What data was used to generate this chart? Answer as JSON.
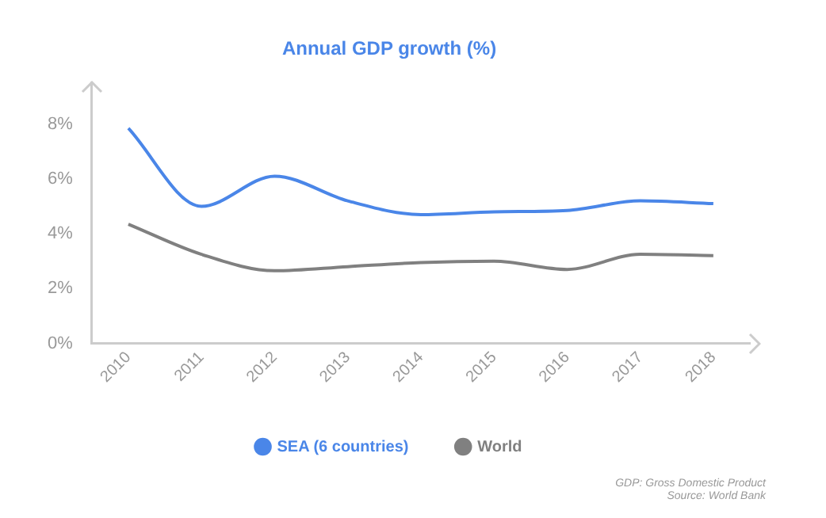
{
  "chart_data": {
    "type": "line",
    "title": "Annual GDP growth (%)",
    "categories": [
      "2010",
      "2011",
      "2012",
      "2013",
      "2014",
      "2015",
      "2016",
      "2017",
      "2018"
    ],
    "series": [
      {
        "name": "SEA (6 countries)",
        "color": "#4a86e8",
        "values": [
          7.85,
          5.0,
          6.1,
          5.2,
          4.7,
          4.8,
          4.85,
          5.2,
          5.1
        ]
      },
      {
        "name": "World",
        "color": "#808080",
        "values": [
          4.35,
          3.25,
          2.65,
          2.8,
          2.95,
          3.0,
          2.7,
          3.25,
          3.2
        ]
      }
    ],
    "ylim": [
      0,
      9.5
    ],
    "yticks": [
      {
        "value": 0,
        "label": "0%"
      },
      {
        "value": 2,
        "label": "2%"
      },
      {
        "value": 4,
        "label": "4%"
      },
      {
        "value": 6,
        "label": "6%"
      },
      {
        "value": 8,
        "label": "8%"
      }
    ],
    "grid": false,
    "legend": "bottom",
    "marker": "none",
    "line_style": "solid",
    "annotations": [
      "GDP: Gross Domestic Product",
      "Source: World Bank"
    ]
  }
}
